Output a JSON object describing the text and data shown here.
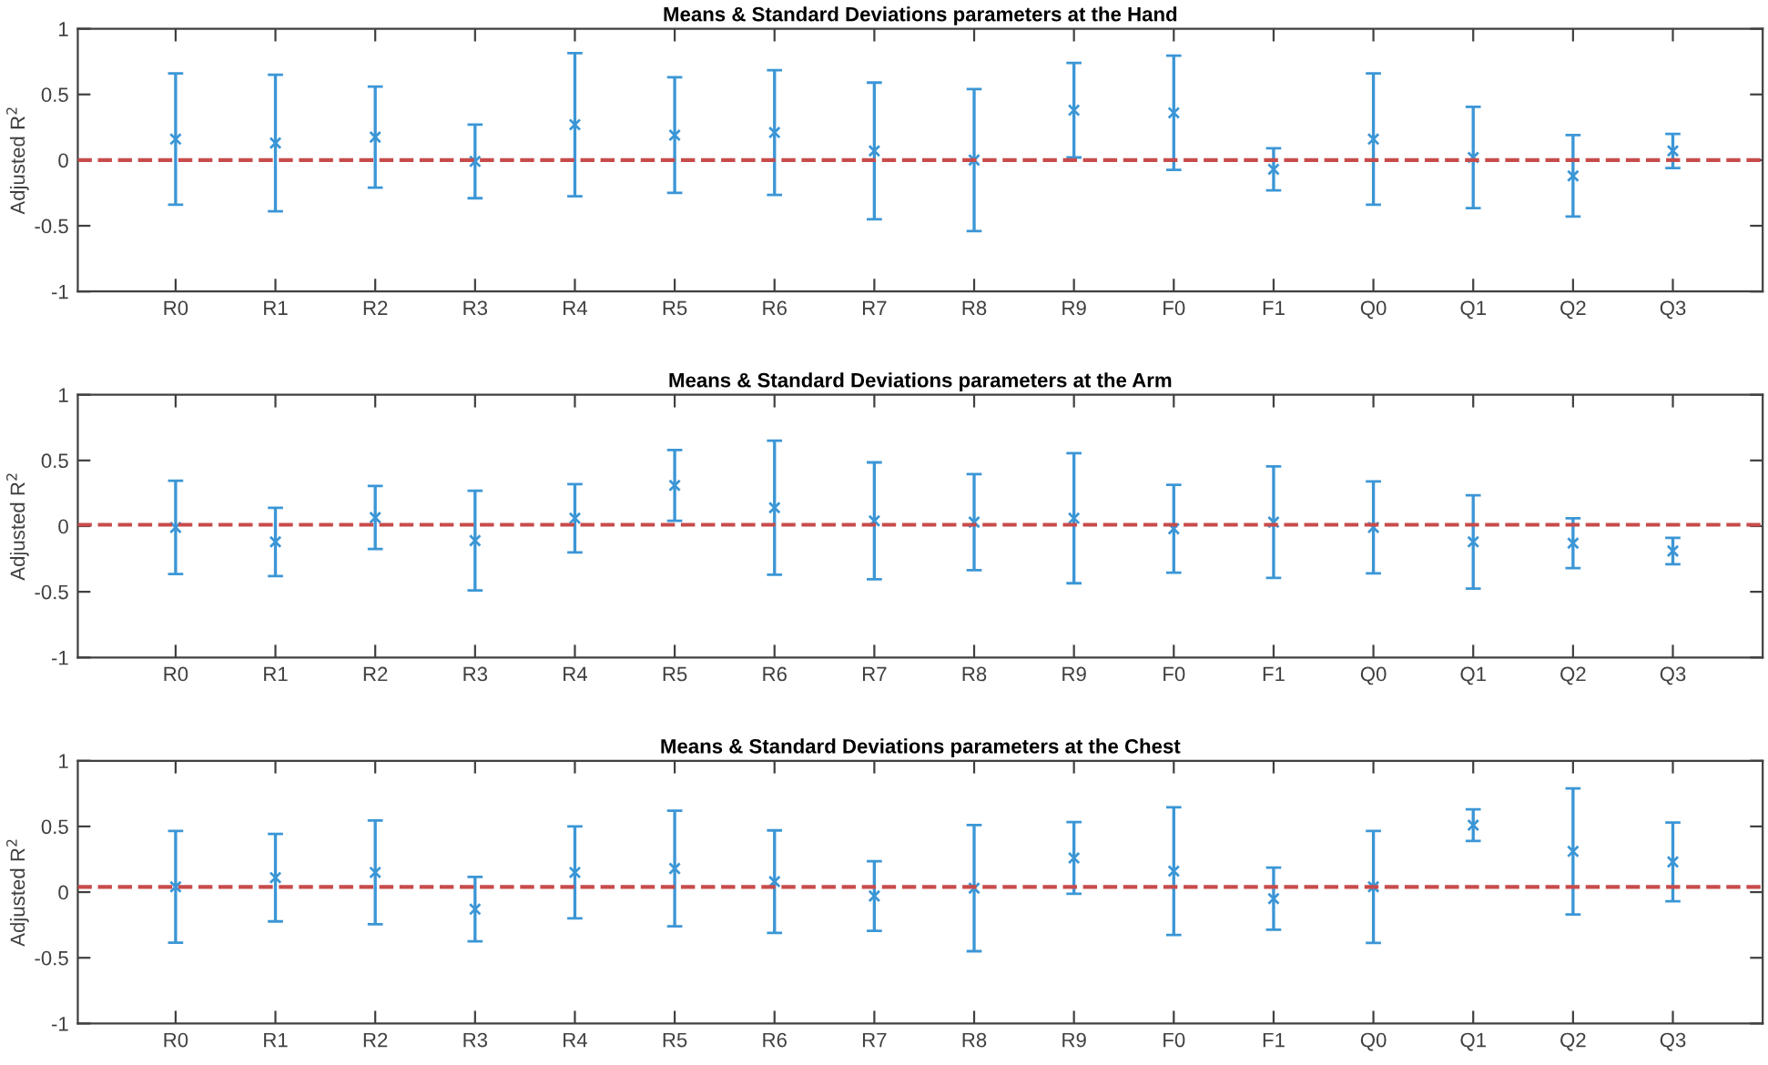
{
  "chart_data": [
    {
      "type": "scatter",
      "title": "Means & Standard Deviations parameters at the Hand",
      "ylabel": "Adjusted R$^{2}$",
      "categories": [
        "R0",
        "R1",
        "R2",
        "R3",
        "R4",
        "R5",
        "R6",
        "R7",
        "R8",
        "R9",
        "F0",
        "F1",
        "Q0",
        "Q1",
        "Q2",
        "Q3"
      ],
      "series": [
        {
          "color": "#3b96d6",
          "values": [
            0.16,
            0.13,
            0.175,
            -0.01,
            0.27,
            0.19,
            0.21,
            0.07,
            0.0,
            0.38,
            0.36,
            -0.07,
            0.16,
            0.02,
            -0.12,
            0.07
          ],
          "errors": [
            0.5,
            0.52,
            0.385,
            0.28,
            0.545,
            0.44,
            0.475,
            0.52,
            0.54,
            0.36,
            0.435,
            0.16,
            0.5,
            0.385,
            0.31,
            0.13
          ]
        }
      ],
      "ylim": [
        -1,
        1
      ],
      "yticks": [
        -1,
        -0.5,
        0,
        0.5,
        1
      ],
      "marker": "cross",
      "grid": false,
      "ref_lines": [
        {
          "axis": "y",
          "value": 0,
          "color": "#c84b4b",
          "line_style": "dashed"
        }
      ]
    },
    {
      "type": "scatter",
      "title": "Means & Standard Deviations parameters at the Arm",
      "ylabel": "Adjusted R$^{2}$",
      "categories": [
        "R0",
        "R1",
        "R2",
        "R3",
        "R4",
        "R5",
        "R6",
        "R7",
        "R8",
        "R9",
        "F0",
        "F1",
        "Q0",
        "Q1",
        "Q2",
        "Q3"
      ],
      "series": [
        {
          "color": "#3b96d6",
          "values": [
            -0.01,
            -0.12,
            0.065,
            -0.11,
            0.06,
            0.31,
            0.14,
            0.04,
            0.03,
            0.06,
            -0.02,
            0.03,
            -0.01,
            -0.12,
            -0.13,
            -0.19
          ],
          "errors": [
            0.355,
            0.26,
            0.24,
            0.38,
            0.26,
            0.27,
            0.51,
            0.445,
            0.365,
            0.495,
            0.335,
            0.425,
            0.35,
            0.355,
            0.19,
            0.1
          ]
        }
      ],
      "ylim": [
        -1,
        1
      ],
      "yticks": [
        -1,
        -0.5,
        0,
        0.5,
        1
      ],
      "marker": "cross",
      "grid": false,
      "ref_lines": [
        {
          "axis": "y",
          "value": 0.01,
          "color": "#c84b4b",
          "line_style": "dashed"
        }
      ]
    },
    {
      "type": "scatter",
      "title": "Means & Standard Deviations parameters at the Chest",
      "ylabel": "Adjusted R$^{2}$",
      "categories": [
        "R0",
        "R1",
        "R2",
        "R3",
        "R4",
        "R5",
        "R6",
        "R7",
        "R8",
        "R9",
        "F0",
        "F1",
        "Q0",
        "Q1",
        "Q2",
        "Q3"
      ],
      "series": [
        {
          "color": "#3b96d6",
          "values": [
            0.04,
            0.11,
            0.15,
            -0.13,
            0.15,
            0.18,
            0.08,
            -0.03,
            0.03,
            0.26,
            0.16,
            -0.05,
            0.04,
            0.51,
            0.31,
            0.23
          ],
          "errors": [
            0.425,
            0.333,
            0.395,
            0.245,
            0.35,
            0.44,
            0.39,
            0.265,
            0.48,
            0.273,
            0.486,
            0.236,
            0.426,
            0.12,
            0.48,
            0.3
          ]
        }
      ],
      "ylim": [
        -1,
        1
      ],
      "yticks": [
        -1,
        -0.5,
        0,
        0.5,
        1
      ],
      "marker": "cross",
      "grid": false,
      "ref_lines": [
        {
          "axis": "y",
          "value": 0.04,
          "color": "#c84b4b",
          "line_style": "dashed"
        }
      ]
    }
  ]
}
